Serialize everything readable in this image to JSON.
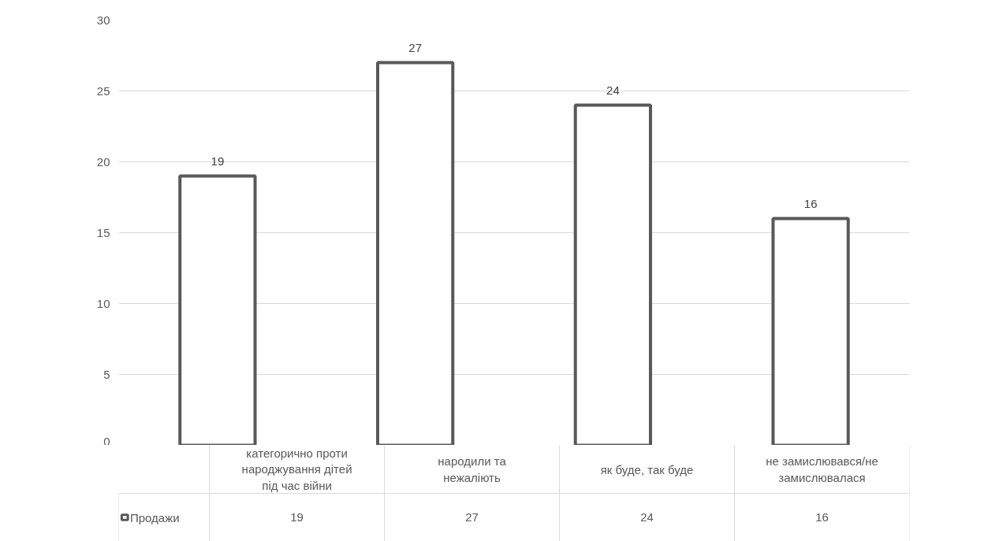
{
  "chart_data": {
    "type": "bar",
    "categories": [
      "категорично проти народжування дітей під час війни",
      "народили та нежаліють",
      "як буде, так буде",
      "не замислювався/не замислювалася"
    ],
    "series": [
      {
        "name": "Продажи",
        "color": "#595959",
        "values": [
          19,
          27,
          24,
          16
        ],
        "value_labels": [
          "19",
          "27",
          "24",
          "16"
        ]
      }
    ],
    "ylim": [
      0,
      30
    ],
    "yticks": [
      0,
      5,
      10,
      15,
      20,
      25,
      30
    ],
    "grid": "y",
    "data_labels": true,
    "legend": "bottom"
  }
}
